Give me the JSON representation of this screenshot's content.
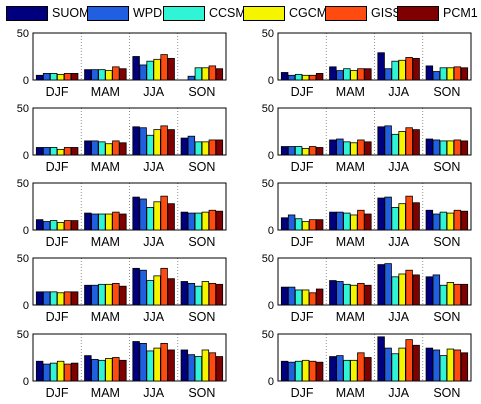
{
  "legend": [
    {
      "name": "SUOMI",
      "color": "#00007f"
    },
    {
      "name": "WPDN",
      "color": "#1f5fe0"
    },
    {
      "name": "CCSM3",
      "color": "#2ff5d6"
    },
    {
      "name": "CGCM3",
      "color": "#f5f500"
    },
    {
      "name": "GISS",
      "color": "#ff4a10"
    },
    {
      "name": "PCM1",
      "color": "#7f0000"
    }
  ],
  "chart_data": [
    {
      "type": "bar",
      "categories": [
        "DJF",
        "MAM",
        "JJA",
        "SON"
      ],
      "ylim": [
        0,
        50
      ],
      "yticks": [
        0,
        50
      ],
      "grid": "dotted vertical",
      "series": [
        {
          "name": "SUOMI",
          "values": [
            5,
            11,
            25,
            0
          ]
        },
        {
          "name": "WPDN",
          "values": [
            7,
            11,
            16,
            4
          ]
        },
        {
          "name": "CCSM3",
          "values": [
            7,
            11,
            20,
            13
          ]
        },
        {
          "name": "CGCM3",
          "values": [
            6,
            10,
            22,
            13
          ]
        },
        {
          "name": "GISS",
          "values": [
            7,
            14,
            27,
            15
          ]
        },
        {
          "name": "PCM1",
          "values": [
            7,
            12,
            23,
            12
          ]
        }
      ]
    },
    {
      "type": "bar",
      "categories": [
        "DJF",
        "MAM",
        "JJA",
        "SON"
      ],
      "ylim": [
        0,
        50
      ],
      "yticks": [
        0,
        50
      ],
      "grid": "dotted vertical",
      "series": [
        {
          "name": "SUOMI",
          "values": [
            8,
            14,
            29,
            15
          ]
        },
        {
          "name": "WPDN",
          "values": [
            5,
            10,
            12,
            9
          ]
        },
        {
          "name": "CCSM3",
          "values": [
            6,
            12,
            20,
            13
          ]
        },
        {
          "name": "CGCM3",
          "values": [
            5,
            10,
            21,
            13
          ]
        },
        {
          "name": "GISS",
          "values": [
            5,
            12,
            24,
            14
          ]
        },
        {
          "name": "PCM1",
          "values": [
            7,
            12,
            23,
            13
          ]
        }
      ]
    },
    {
      "type": "bar",
      "categories": [
        "DJF",
        "MAM",
        "JJA",
        "SON"
      ],
      "ylim": [
        0,
        50
      ],
      "yticks": [
        0,
        50
      ],
      "grid": "dotted vertical",
      "series": [
        {
          "name": "SUOMI",
          "values": [
            8,
            15,
            30,
            18
          ]
        },
        {
          "name": "WPDN",
          "values": [
            8,
            15,
            29,
            20
          ]
        },
        {
          "name": "CCSM3",
          "values": [
            8,
            14,
            21,
            14
          ]
        },
        {
          "name": "CGCM3",
          "values": [
            6,
            12,
            27,
            14
          ]
        },
        {
          "name": "GISS",
          "values": [
            8,
            15,
            31,
            16
          ]
        },
        {
          "name": "PCM1",
          "values": [
            8,
            13,
            27,
            16
          ]
        }
      ]
    },
    {
      "type": "bar",
      "categories": [
        "DJF",
        "MAM",
        "JJA",
        "SON"
      ],
      "ylim": [
        0,
        50
      ],
      "yticks": [
        0,
        50
      ],
      "grid": "dotted vertical",
      "series": [
        {
          "name": "SUOMI",
          "values": [
            9,
            16,
            30,
            17
          ]
        },
        {
          "name": "WPDN",
          "values": [
            9,
            17,
            31,
            16
          ]
        },
        {
          "name": "CCSM3",
          "values": [
            9,
            14,
            22,
            15
          ]
        },
        {
          "name": "CGCM3",
          "values": [
            7,
            13,
            25,
            15
          ]
        },
        {
          "name": "GISS",
          "values": [
            9,
            16,
            29,
            16
          ]
        },
        {
          "name": "PCM1",
          "values": [
            8,
            14,
            27,
            15
          ]
        }
      ]
    },
    {
      "type": "bar",
      "categories": [
        "DJF",
        "MAM",
        "JJA",
        "SON"
      ],
      "ylim": [
        0,
        50
      ],
      "yticks": [
        0,
        50
      ],
      "grid": "dotted vertical",
      "series": [
        {
          "name": "SUOMI",
          "values": [
            11,
            18,
            35,
            19
          ]
        },
        {
          "name": "WPDN",
          "values": [
            9,
            17,
            33,
            18
          ]
        },
        {
          "name": "CCSM3",
          "values": [
            10,
            17,
            24,
            18
          ]
        },
        {
          "name": "CGCM3",
          "values": [
            8,
            17,
            30,
            19
          ]
        },
        {
          "name": "GISS",
          "values": [
            10,
            19,
            36,
            21
          ]
        },
        {
          "name": "PCM1",
          "values": [
            10,
            17,
            28,
            20
          ]
        }
      ]
    },
    {
      "type": "bar",
      "categories": [
        "DJF",
        "MAM",
        "JJA",
        "SON"
      ],
      "ylim": [
        0,
        50
      ],
      "yticks": [
        0,
        50
      ],
      "grid": "dotted vertical",
      "series": [
        {
          "name": "SUOMI",
          "values": [
            13,
            19,
            34,
            21
          ]
        },
        {
          "name": "WPDN",
          "values": [
            16,
            19,
            35,
            17
          ]
        },
        {
          "name": "CCSM3",
          "values": [
            12,
            18,
            24,
            19
          ]
        },
        {
          "name": "CGCM3",
          "values": [
            9,
            16,
            28,
            18
          ]
        },
        {
          "name": "GISS",
          "values": [
            11,
            21,
            36,
            21
          ]
        },
        {
          "name": "PCM1",
          "values": [
            11,
            17,
            29,
            20
          ]
        }
      ]
    },
    {
      "type": "bar",
      "categories": [
        "DJF",
        "MAM",
        "JJA",
        "SON"
      ],
      "ylim": [
        0,
        50
      ],
      "yticks": [
        0,
        50
      ],
      "grid": "dotted vertical",
      "series": [
        {
          "name": "SUOMI",
          "values": [
            14,
            21,
            39,
            25
          ]
        },
        {
          "name": "WPDN",
          "values": [
            14,
            21,
            37,
            23
          ]
        },
        {
          "name": "CCSM3",
          "values": [
            14,
            22,
            26,
            20
          ]
        },
        {
          "name": "CGCM3",
          "values": [
            13,
            22,
            31,
            25
          ]
        },
        {
          "name": "GISS",
          "values": [
            14,
            23,
            39,
            23
          ]
        },
        {
          "name": "PCM1",
          "values": [
            14,
            20,
            28,
            22
          ]
        }
      ]
    },
    {
      "type": "bar",
      "categories": [
        "DJF",
        "MAM",
        "JJA",
        "SON"
      ],
      "ylim": [
        0,
        50
      ],
      "yticks": [
        0,
        50
      ],
      "grid": "dotted vertical",
      "series": [
        {
          "name": "SUOMI",
          "values": [
            19,
            26,
            43,
            30
          ]
        },
        {
          "name": "WPDN",
          "values": [
            19,
            25,
            44,
            32
          ]
        },
        {
          "name": "CCSM3",
          "values": [
            16,
            22,
            30,
            21
          ]
        },
        {
          "name": "CGCM3",
          "values": [
            16,
            21,
            33,
            24
          ]
        },
        {
          "name": "GISS",
          "values": [
            13,
            23,
            37,
            22
          ]
        },
        {
          "name": "PCM1",
          "values": [
            17,
            21,
            32,
            22
          ]
        }
      ]
    },
    {
      "type": "bar",
      "categories": [
        "DJF",
        "MAM",
        "JJA",
        "SON"
      ],
      "ylim": [
        0,
        50
      ],
      "yticks": [
        0,
        50
      ],
      "grid": "dotted vertical",
      "series": [
        {
          "name": "SUOMI",
          "values": [
            21,
            27,
            42,
            33
          ]
        },
        {
          "name": "WPDN",
          "values": [
            18,
            23,
            40,
            28
          ]
        },
        {
          "name": "CCSM3",
          "values": [
            19,
            22,
            32,
            26
          ]
        },
        {
          "name": "CGCM3",
          "values": [
            21,
            24,
            35,
            33
          ]
        },
        {
          "name": "GISS",
          "values": [
            18,
            25,
            40,
            30
          ]
        },
        {
          "name": "PCM1",
          "values": [
            19,
            22,
            33,
            26
          ]
        }
      ]
    },
    {
      "type": "bar",
      "categories": [
        "DJF",
        "MAM",
        "JJA",
        "SON"
      ],
      "ylim": [
        0,
        50
      ],
      "yticks": [
        0,
        50
      ],
      "grid": "dotted vertical",
      "series": [
        {
          "name": "SUOMI",
          "values": [
            21,
            26,
            47,
            35
          ]
        },
        {
          "name": "WPDN",
          "values": [
            20,
            27,
            35,
            33
          ]
        },
        {
          "name": "CCSM3",
          "values": [
            21,
            22,
            29,
            27
          ]
        },
        {
          "name": "CGCM3",
          "values": [
            22,
            22,
            35,
            34
          ]
        },
        {
          "name": "GISS",
          "values": [
            21,
            30,
            44,
            33
          ]
        },
        {
          "name": "PCM1",
          "values": [
            20,
            25,
            38,
            30
          ]
        }
      ]
    }
  ]
}
